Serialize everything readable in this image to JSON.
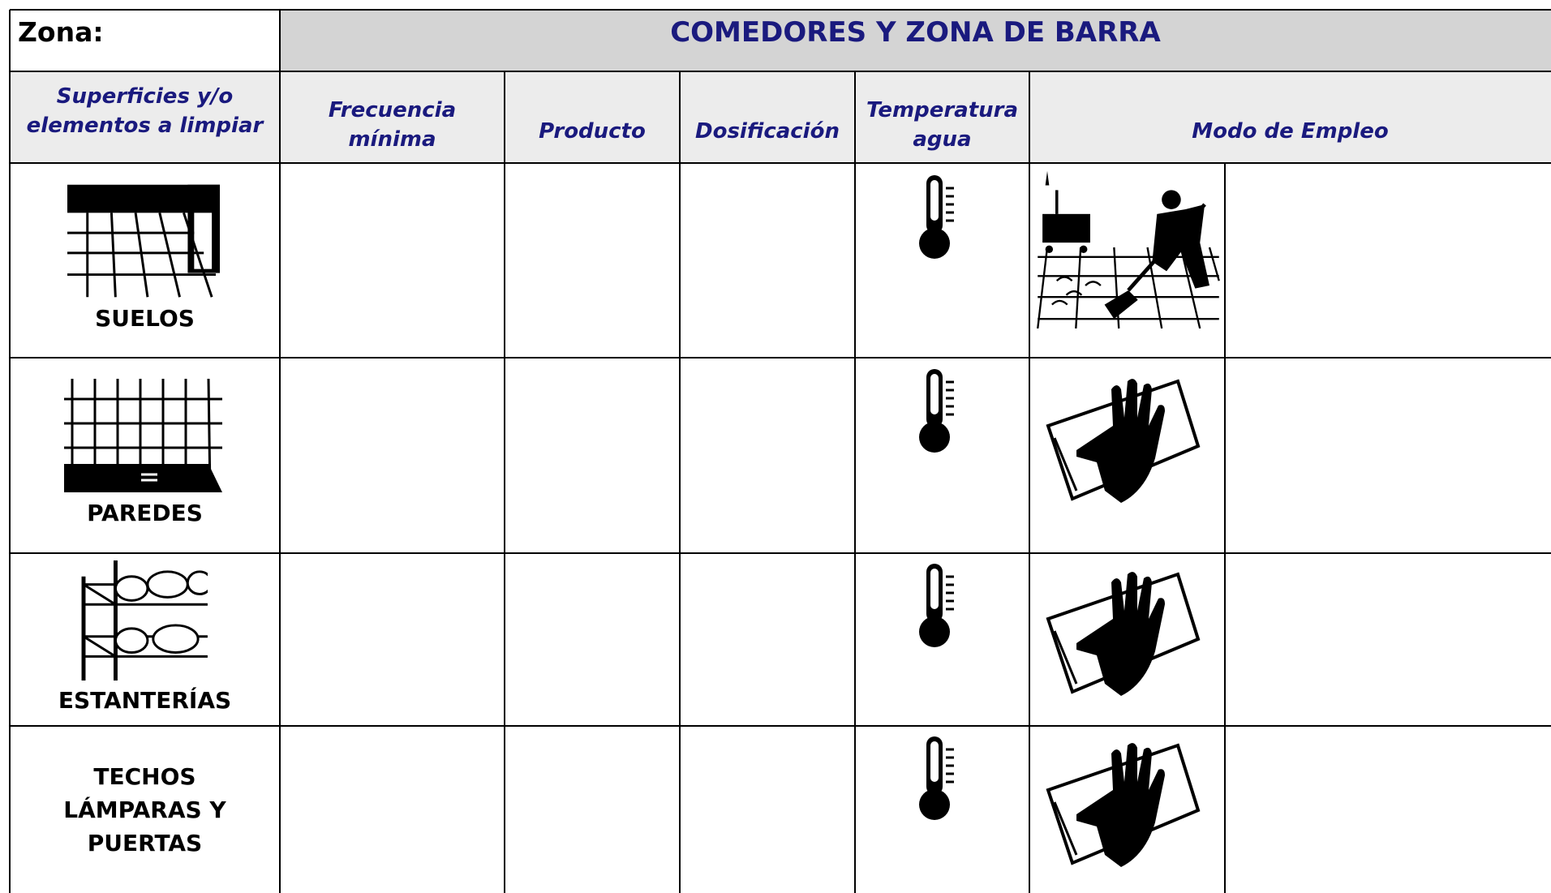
{
  "header": {
    "zona_label": "Zona:",
    "title": "COMEDORES Y ZONA DE BARRA"
  },
  "table": {
    "columns": [
      "Superficies y/o elementos a limpiar",
      "Frecuencia mínima",
      "Producto",
      "Dosificación",
      "Temperatura agua",
      "Modo de Empleo"
    ],
    "rows": [
      "SUELOS",
      "PAREDES",
      "ESTANTERÍAS",
      "TECHOS LÁMPARAS Y PUERTAS"
    ]
  }
}
